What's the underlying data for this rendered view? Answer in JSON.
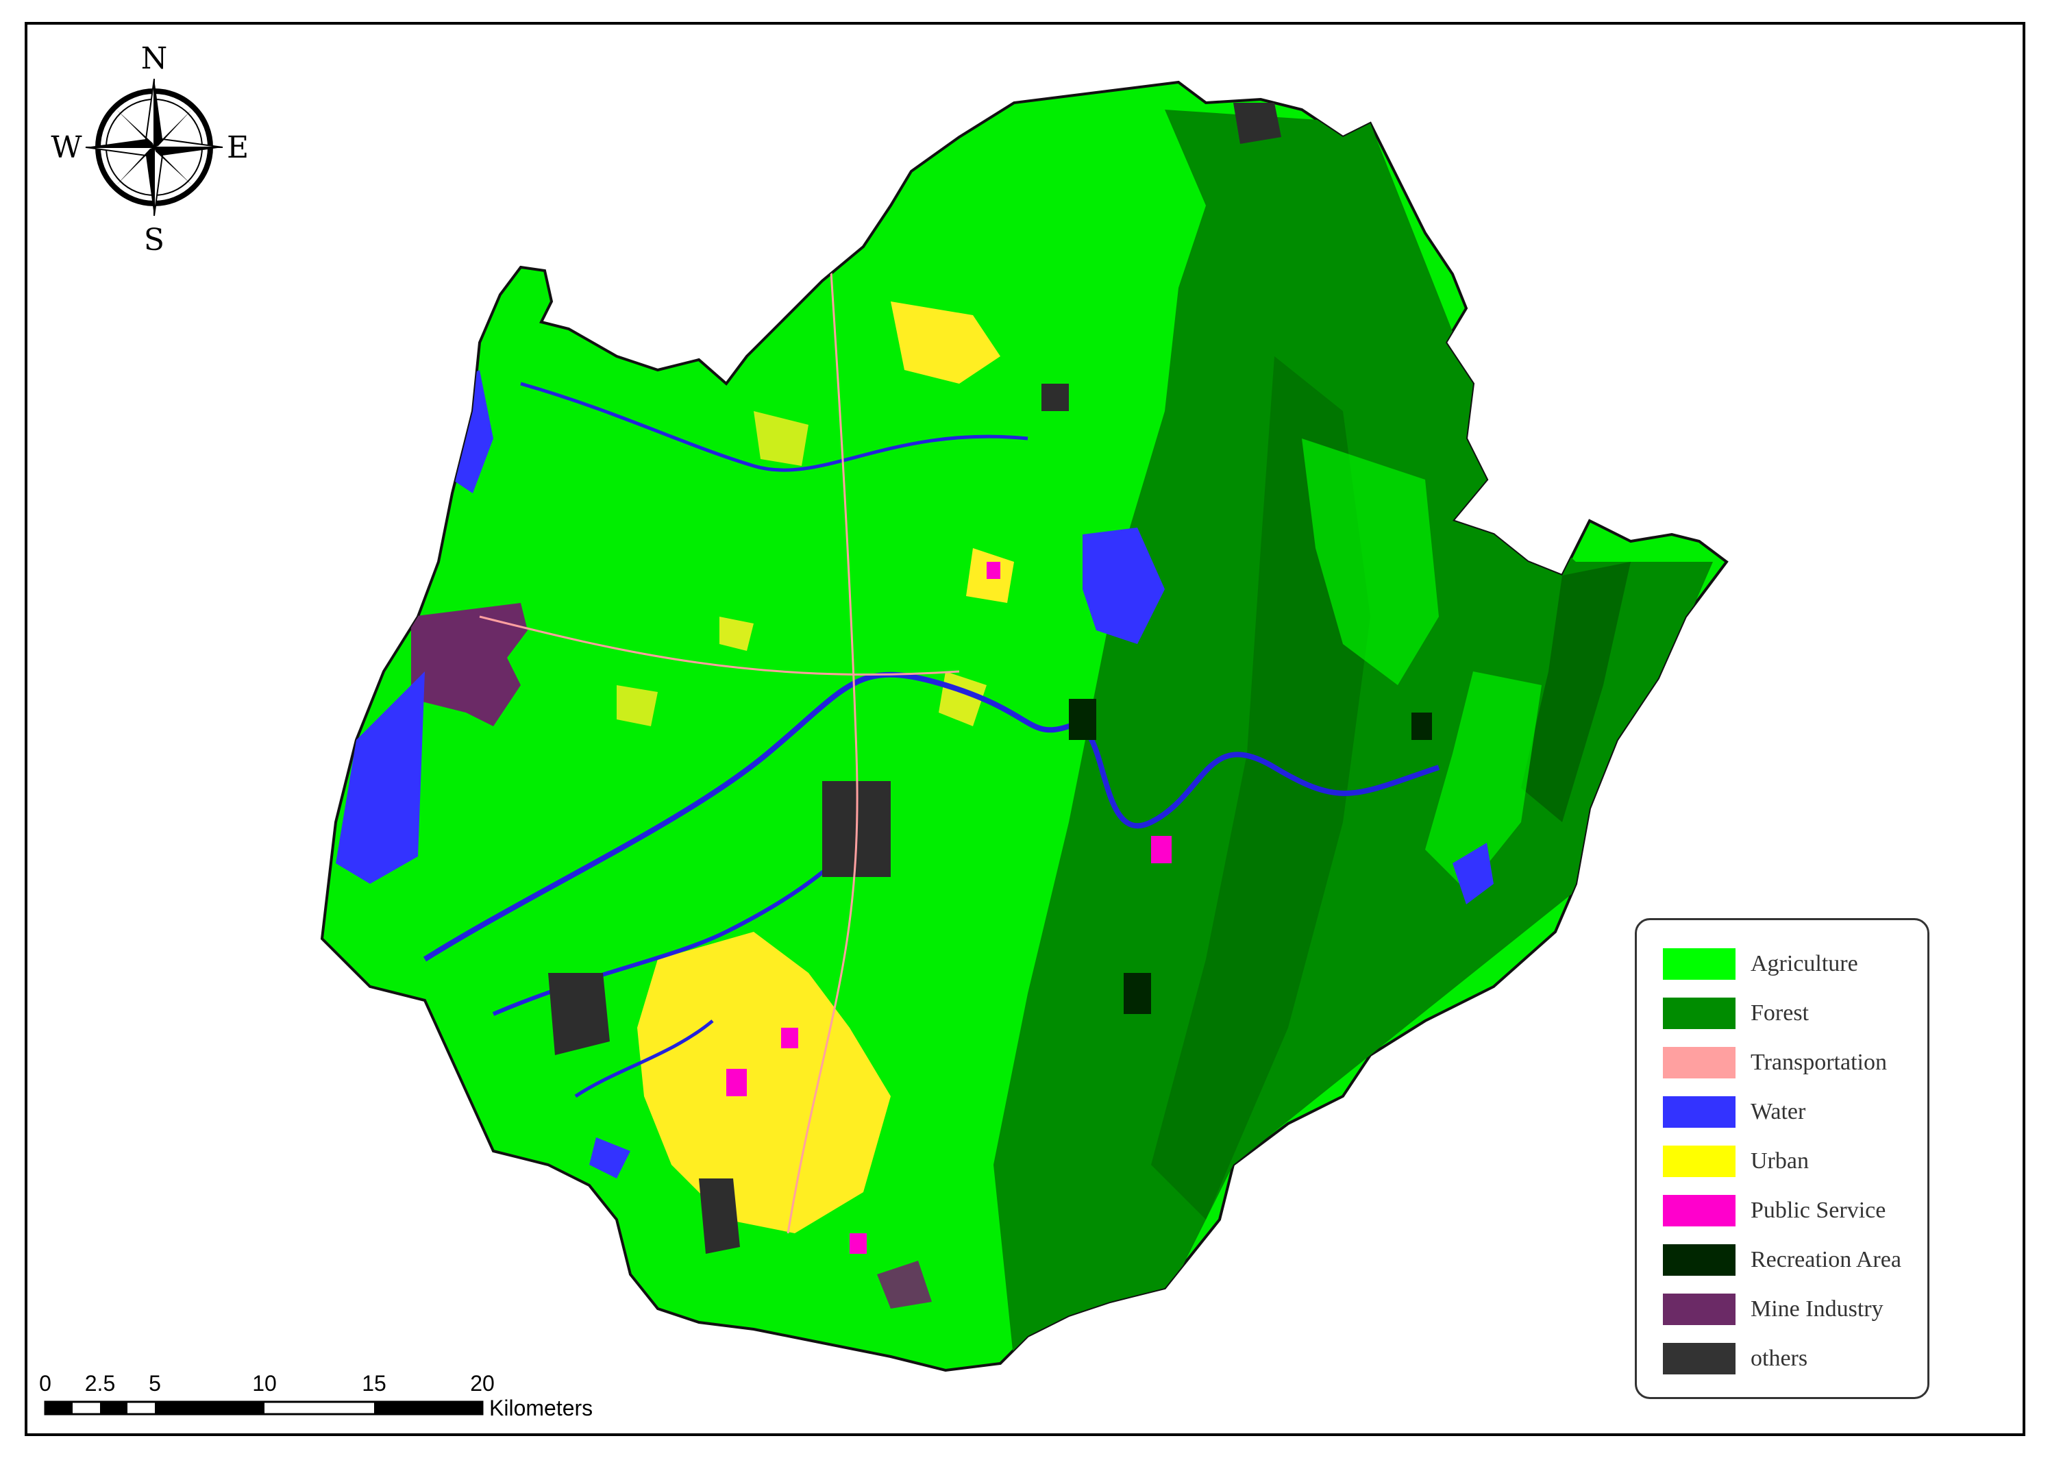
{
  "compass": {
    "north": "N",
    "south": "S",
    "east": "E",
    "west": "W"
  },
  "legend": {
    "items": [
      {
        "label": "Agriculture",
        "color": "#00ff00"
      },
      {
        "label": "Forest",
        "color": "#008c00"
      },
      {
        "label": "Transportation",
        "color": "#ffa0a0"
      },
      {
        "label": "Water",
        "color": "#3333ff"
      },
      {
        "label": "Urban",
        "color": "#ffff00"
      },
      {
        "label": "Public Service",
        "color": "#ff00cc"
      },
      {
        "label": "Recreation Area",
        "color": "#002600"
      },
      {
        "label": "Mine Industry",
        "color": "#6b2a66"
      },
      {
        "label": "others",
        "color": "#333333"
      }
    ]
  },
  "scale_bar": {
    "ticks": [
      "0",
      "2.5",
      "5",
      "10",
      "15",
      "20"
    ],
    "unit": "Kilometers"
  }
}
